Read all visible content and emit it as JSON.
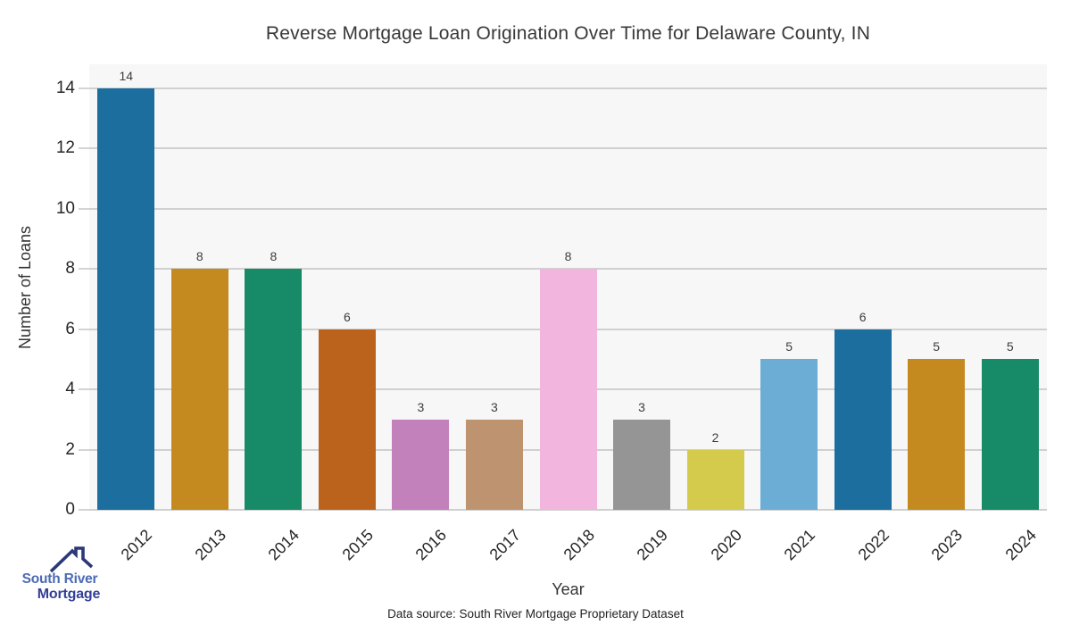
{
  "title": "Reverse Mortgage Loan Origination Over Time for Delaware County, IN",
  "chart_data": {
    "type": "bar",
    "title": "Reverse Mortgage Loan Origination Over Time for Delaware County, IN",
    "categories": [
      "2012",
      "2013",
      "2014",
      "2015",
      "2016",
      "2017",
      "2018",
      "2019",
      "2020",
      "2021",
      "2022",
      "2023",
      "2024"
    ],
    "values": [
      14,
      8,
      8,
      6,
      3,
      3,
      8,
      3,
      2,
      5,
      6,
      5,
      5
    ],
    "bar_colors": [
      "#1c6e9e",
      "#c4891f",
      "#178a68",
      "#bb631d",
      "#c281ba",
      "#bd946f",
      "#f2b5dd",
      "#959595",
      "#d4ca4b",
      "#6badd5",
      "#1c6e9e",
      "#c4891f",
      "#178a68"
    ],
    "xlabel": "Year",
    "ylabel": "Number of Loans",
    "yticks": [
      0,
      2,
      4,
      6,
      8,
      10,
      12,
      14
    ],
    "ylim": [
      0,
      14.8
    ],
    "grid": true,
    "legend": "none",
    "plot_background": "#f7f7f7",
    "grid_color": "#d0d0d0"
  },
  "footer": {
    "source": "Data source: South River Mortgage Proprietary Dataset"
  },
  "logo": {
    "line1": "South River",
    "line2": "Mortgage",
    "line1_color": "#4c6ab4",
    "line2_color": "#333f96",
    "roof_color": "#2b3878"
  }
}
